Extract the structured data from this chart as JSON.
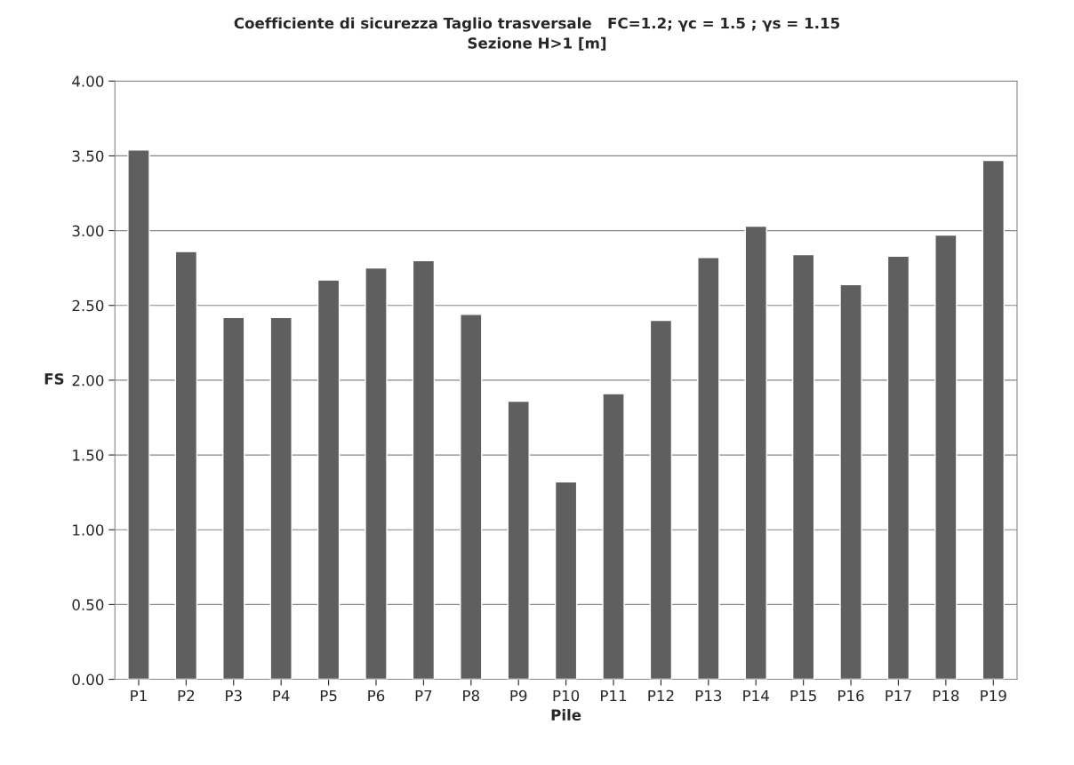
{
  "chart_data": {
    "type": "bar",
    "title": "Coefficiente di sicurezza Taglio trasversale   FC=1.2; γc = 1.5 ; γs = 1.15",
    "subtitle": "Sezione H>1 [m]",
    "xlabel": "Pile",
    "ylabel": "FS",
    "categories": [
      "P1",
      "P2",
      "P3",
      "P4",
      "P5",
      "P6",
      "P7",
      "P8",
      "P9",
      "P10",
      "P11",
      "P12",
      "P13",
      "P14",
      "P15",
      "P16",
      "P17",
      "P18",
      "P19"
    ],
    "values": [
      3.54,
      2.86,
      2.42,
      2.42,
      2.67,
      2.75,
      2.8,
      2.44,
      1.86,
      1.32,
      1.91,
      2.4,
      2.82,
      3.03,
      2.84,
      2.64,
      2.83,
      2.97,
      3.47
    ],
    "color": "#5f5f5f",
    "ylim": [
      0,
      4
    ],
    "yticks": [
      {
        "value": 0,
        "label": "0.00"
      },
      {
        "value": 0.5,
        "label": "0.50"
      },
      {
        "value": 1,
        "label": "1.00"
      },
      {
        "value": 1.5,
        "label": "1.50"
      },
      {
        "value": 2,
        "label": "2.00"
      },
      {
        "value": 2.5,
        "label": "2.50"
      },
      {
        "value": 3,
        "label": "3.00"
      },
      {
        "value": 3.5,
        "label": "3.50"
      },
      {
        "value": 4,
        "label": "4.00"
      }
    ],
    "grid": "y",
    "legend": false
  }
}
